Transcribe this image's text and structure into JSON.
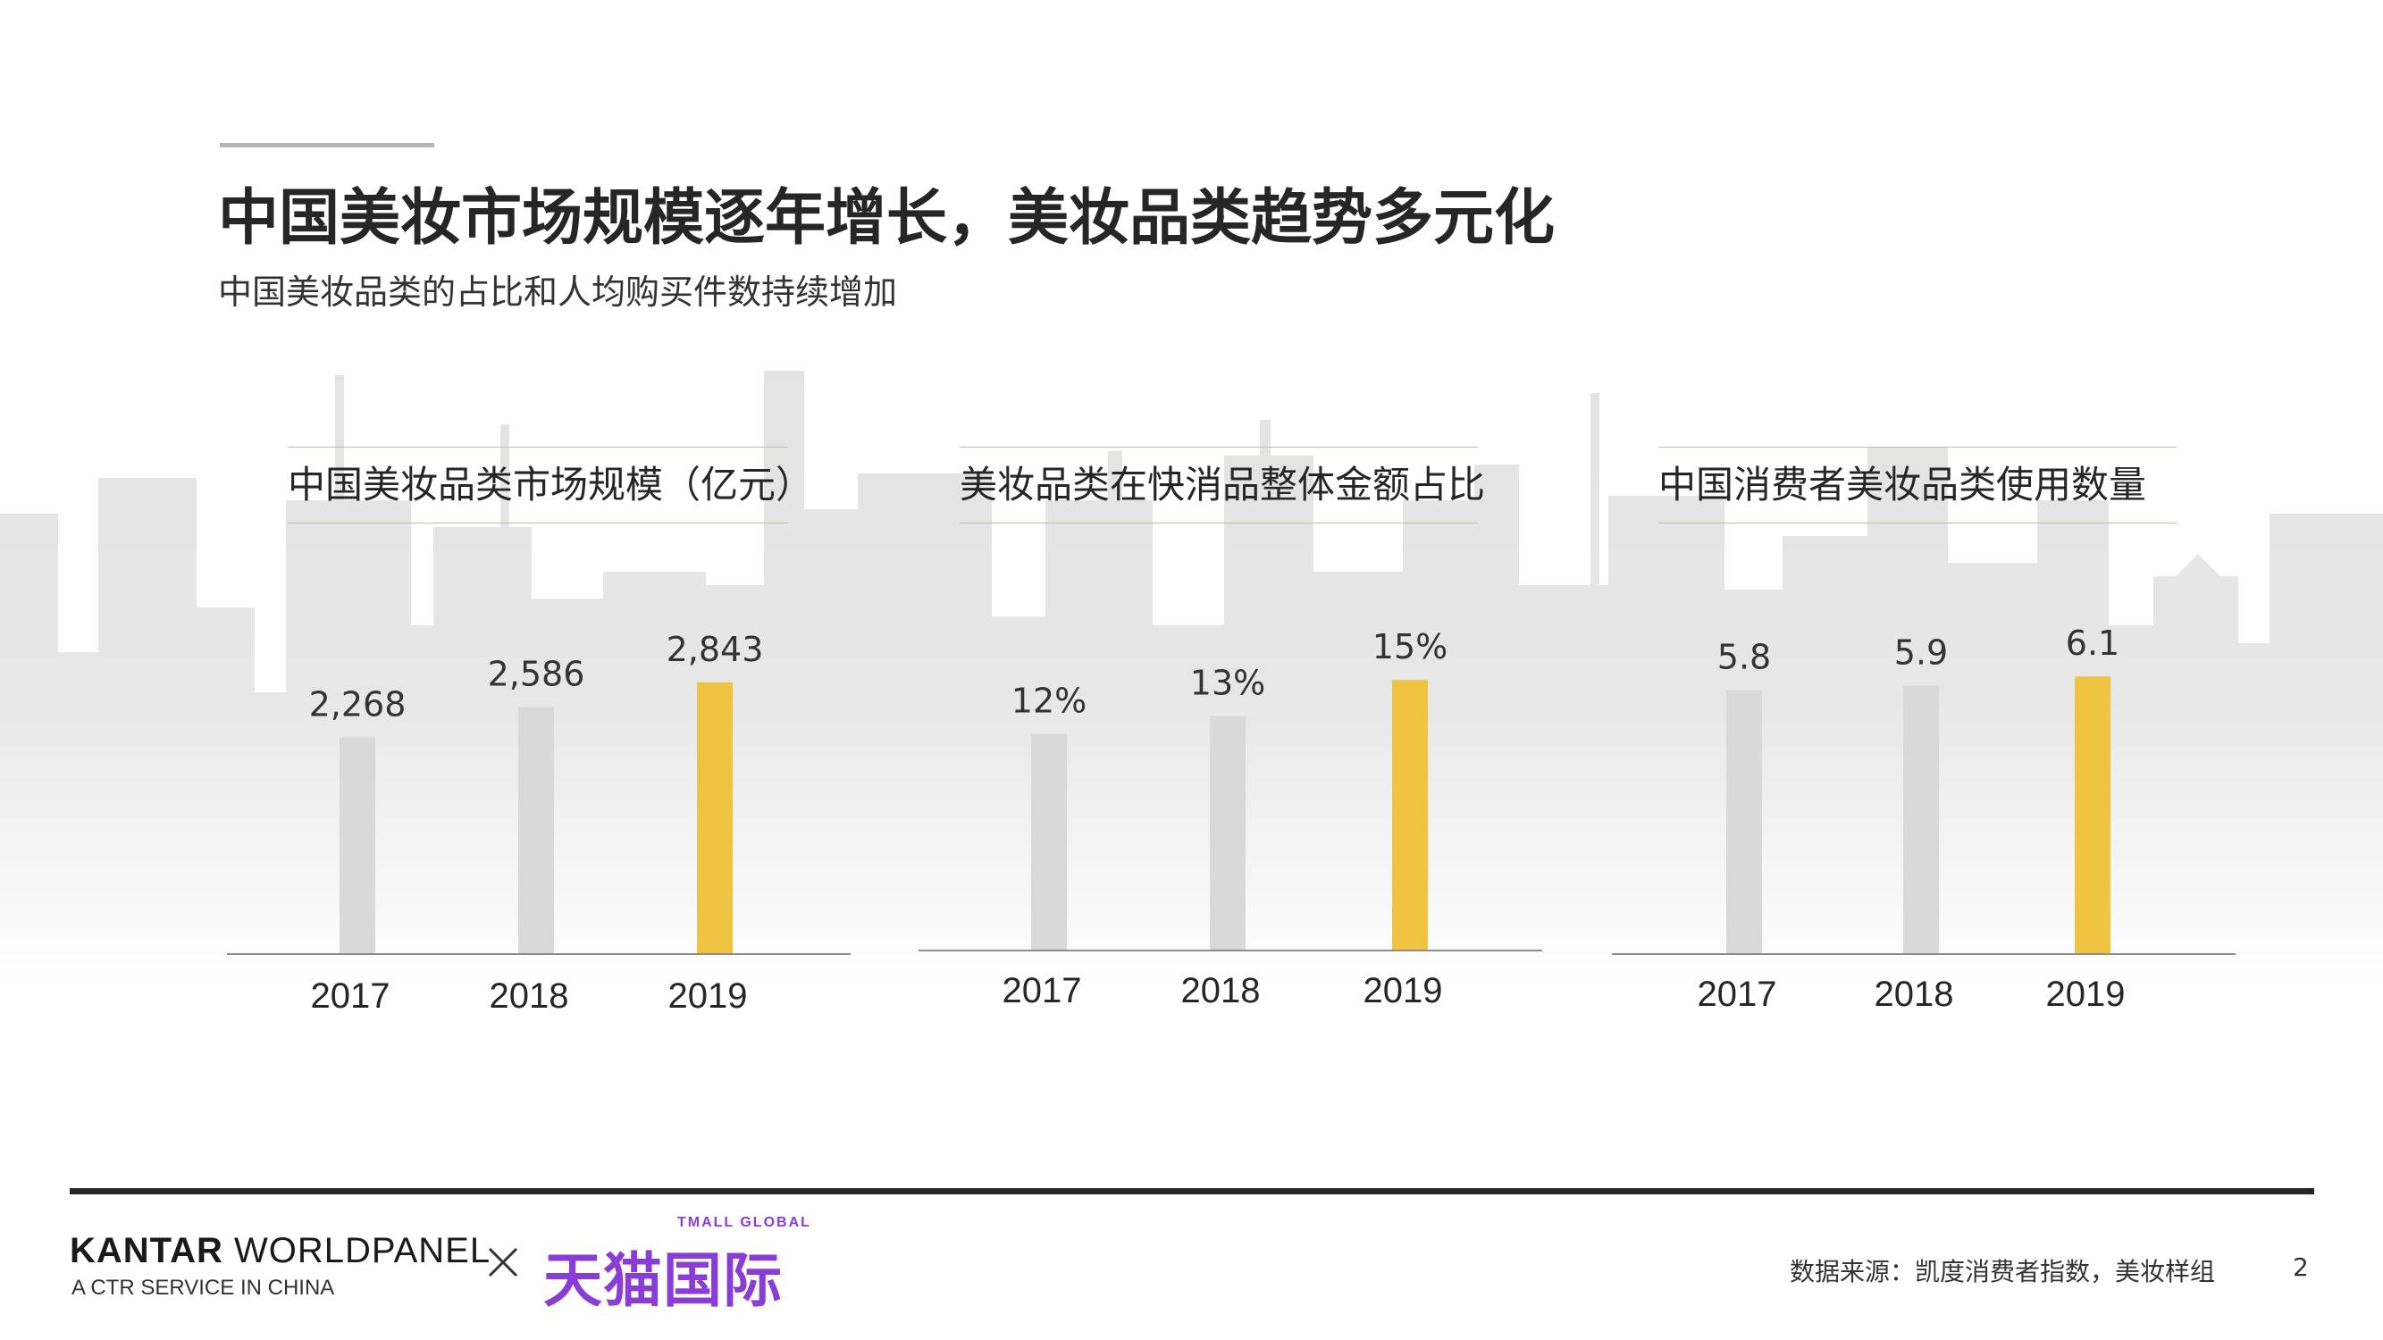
{
  "header": {
    "title": "中国美妆市场规模逐年增长，美妆品类趋势多元化",
    "subtitle": "中国美妆品类的占比和人均购买件数持续增加"
  },
  "colors": {
    "bar_default": "#d9d9d9",
    "bar_highlight": "#efc443",
    "axis": "#8c8c8c",
    "skyline": "#e3e3e3",
    "tmall_purple": "#8a3dd6"
  },
  "chart_data": [
    {
      "type": "bar",
      "title": "中国美妆品类市场规模（亿元）",
      "categories": [
        "2017",
        "2018",
        "2019"
      ],
      "values": [
        2268,
        2586,
        2843
      ],
      "value_labels": [
        "2,268",
        "2,586",
        "2,843"
      ],
      "highlight_index": 2,
      "ylim": [
        0,
        4000
      ]
    },
    {
      "type": "bar",
      "title": "美妆品类在快消品整体金额占比",
      "categories": [
        "2017",
        "2018",
        "2019"
      ],
      "values": [
        12,
        13,
        15
      ],
      "value_labels": [
        "12%",
        "13%",
        "15%"
      ],
      "highlight_index": 2,
      "ylim": [
        0,
        21
      ]
    },
    {
      "type": "bar",
      "title": "中国消费者美妆品类使用数量",
      "categories": [
        "2017",
        "2018",
        "2019"
      ],
      "values": [
        5.8,
        5.9,
        6.1
      ],
      "value_labels": [
        "5.8",
        "5.9",
        "6.1"
      ],
      "highlight_index": 2,
      "ylim": [
        0,
        8.4
      ]
    }
  ],
  "footer": {
    "brand_main_bold": "KANTAR",
    "brand_main_rest": " WORLDPANEL",
    "brand_sub": "A CTR SERVICE IN CHINA",
    "tmall_small": "TMALL GLOBAL",
    "tmall_big": "天猫国际",
    "source": "数据来源：凯度消费者指数，美妆样组",
    "page_number": "2"
  }
}
